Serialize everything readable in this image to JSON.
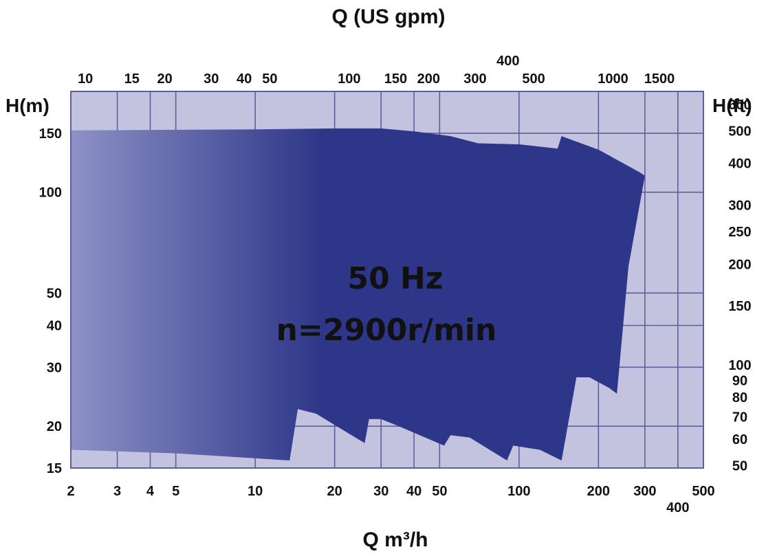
{
  "chart_data": {
    "type": "area",
    "title": "Q (US gpm)",
    "xlabel": "Q m³/h",
    "ylabel_left": "H(m)",
    "ylabel_right": "H(ft)",
    "x_scale": "log",
    "y_scale": "log",
    "xlim": [
      2,
      500
    ],
    "ylim": [
      15,
      200
    ],
    "grid": true,
    "colors": {
      "background": "#c3c3e0",
      "grid": "#5b5f9a",
      "fill_dark": "#2d3688",
      "fill_light": "#8d91c6"
    },
    "x_ticks": [
      {
        "value": 2,
        "label": "2"
      },
      {
        "value": 3,
        "label": "3"
      },
      {
        "value": 4,
        "label": "4"
      },
      {
        "value": 5,
        "label": "5"
      },
      {
        "value": 10,
        "label": "10"
      },
      {
        "value": 20,
        "label": "20"
      },
      {
        "value": 30,
        "label": "30"
      },
      {
        "value": 40,
        "label": "40"
      },
      {
        "value": 50,
        "label": "50"
      },
      {
        "value": 100,
        "label": "100"
      },
      {
        "value": 200,
        "label": "200"
      },
      {
        "value": 300,
        "label": "300"
      },
      {
        "value": 400,
        "label": "400"
      },
      {
        "value": 500,
        "label": "500"
      }
    ],
    "gpm_ticks": [
      {
        "value": 10,
        "label": "10"
      },
      {
        "value": 15,
        "label": "15"
      },
      {
        "value": 20,
        "label": "20"
      },
      {
        "value": 30,
        "label": "30"
      },
      {
        "value": 40,
        "label": "40"
      },
      {
        "value": 50,
        "label": "50"
      },
      {
        "value": 100,
        "label": "100"
      },
      {
        "value": 150,
        "label": "150"
      },
      {
        "value": 200,
        "label": "200"
      },
      {
        "value": 300,
        "label": "300"
      },
      {
        "value": 400,
        "label": "400"
      },
      {
        "value": 500,
        "label": "500"
      },
      {
        "value": 1000,
        "label": "1000"
      },
      {
        "value": 1500,
        "label": "1500"
      }
    ],
    "y_ticks": [
      {
        "value": 15,
        "label": "15"
      },
      {
        "value": 20,
        "label": "20"
      },
      {
        "value": 30,
        "label": "30"
      },
      {
        "value": 40,
        "label": "40"
      },
      {
        "value": 50,
        "label": "50"
      },
      {
        "value": 100,
        "label": "100"
      },
      {
        "value": 150,
        "label": "150"
      }
    ],
    "ft_ticks": [
      {
        "value": 50,
        "label": "50"
      },
      {
        "value": 60,
        "label": "60"
      },
      {
        "value": 70,
        "label": "70"
      },
      {
        "value": 80,
        "label": "80"
      },
      {
        "value": 90,
        "label": "90"
      },
      {
        "value": 100,
        "label": "100"
      },
      {
        "value": 150,
        "label": "150"
      },
      {
        "value": 200,
        "label": "200"
      },
      {
        "value": 250,
        "label": "250"
      },
      {
        "value": 300,
        "label": "300"
      },
      {
        "value": 400,
        "label": "400"
      },
      {
        "value": 500,
        "label": "500"
      },
      {
        "value": 600,
        "label": "600"
      }
    ],
    "annotations": [
      "50 Hz",
      "n=2900r/min"
    ],
    "region_boundary": [
      [
        2,
        153
      ],
      [
        10,
        154
      ],
      [
        20,
        155
      ],
      [
        30,
        155
      ],
      [
        40,
        152
      ],
      [
        55,
        147
      ],
      [
        70,
        140
      ],
      [
        100,
        139
      ],
      [
        140,
        135
      ],
      [
        145,
        147
      ],
      [
        200,
        134
      ],
      [
        285,
        115
      ],
      [
        300,
        112
      ],
      [
        260,
        60
      ],
      [
        235,
        25
      ],
      [
        220,
        26
      ],
      [
        185,
        28
      ],
      [
        165,
        28
      ],
      [
        145,
        15.8
      ],
      [
        120,
        17
      ],
      [
        95,
        17.5
      ],
      [
        90,
        15.8
      ],
      [
        65,
        18.5
      ],
      [
        55,
        18.8
      ],
      [
        52,
        17.5
      ],
      [
        35,
        20
      ],
      [
        30,
        21
      ],
      [
        27,
        21
      ],
      [
        26,
        17.8
      ],
      [
        17,
        21.8
      ],
      [
        14.5,
        22.5
      ],
      [
        13.5,
        15.8
      ],
      [
        5,
        16.6
      ],
      [
        2,
        17
      ]
    ]
  }
}
